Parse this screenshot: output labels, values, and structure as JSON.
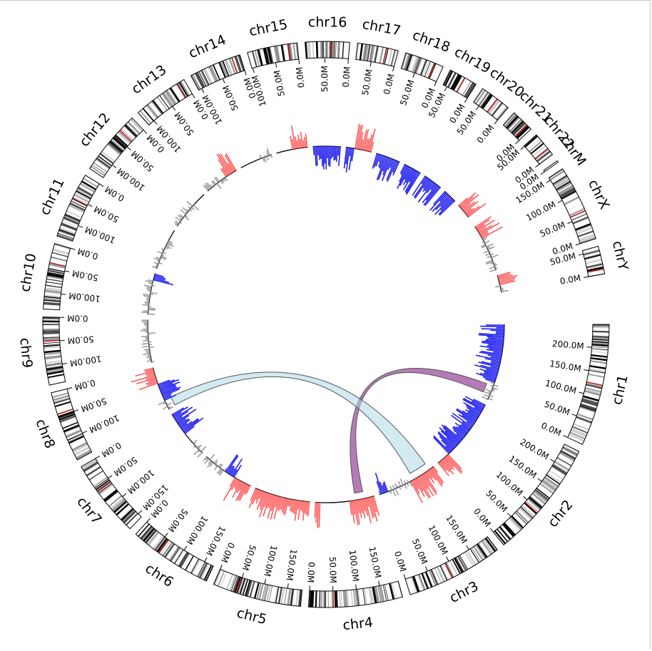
{
  "colors": {
    "gain": "#ff5a5a",
    "loss": "#2020f0",
    "neutral": "#9e9e9e",
    "centromere": "#b22222",
    "link_purple": "#9b4fa0",
    "link_blue": "#add8e6"
  },
  "chromosomes": [
    {
      "name": "chr1",
      "length": 249,
      "cent": 125,
      "ticks": [
        "0.0M",
        "50.0M",
        "100.0M",
        "150.0M",
        "200.0M"
      ]
    },
    {
      "name": "chr2",
      "length": 243,
      "cent": 93,
      "ticks": [
        "0.0M",
        "50.0M",
        "100.0M",
        "150.0M",
        "200.0M"
      ]
    },
    {
      "name": "chr3",
      "length": 198,
      "cent": 91,
      "ticks": [
        "0.0M",
        "50.0M",
        "100.0M",
        "150.0M"
      ]
    },
    {
      "name": "chr4",
      "length": 191,
      "cent": 50,
      "ticks": [
        "0.0M",
        "50.0M",
        "100.0M",
        "150.0M"
      ]
    },
    {
      "name": "chr5",
      "length": 181,
      "cent": 48,
      "ticks": [
        "0.0M",
        "50.0M",
        "100.0M",
        "150.0M"
      ]
    },
    {
      "name": "chr6",
      "length": 171,
      "cent": 60,
      "ticks": [
        "0.0M",
        "50.0M",
        "100.0M",
        "150.0M"
      ]
    },
    {
      "name": "chr7",
      "length": 159,
      "cent": 60,
      "ticks": [
        "0.0M",
        "50.0M",
        "100.0M",
        "150.0M"
      ]
    },
    {
      "name": "chr8",
      "length": 145,
      "cent": 45,
      "ticks": [
        "0.0M",
        "50.0M",
        "100.0M"
      ]
    },
    {
      "name": "chr9",
      "length": 138,
      "cent": 49,
      "ticks": [
        "0.0M",
        "50.0M",
        "100.0M"
      ]
    },
    {
      "name": "chr10",
      "length": 134,
      "cent": 40,
      "ticks": [
        "0.0M",
        "50.0M",
        "100.0M"
      ]
    },
    {
      "name": "chr11",
      "length": 135,
      "cent": 53,
      "ticks": [
        "0.0M",
        "50.0M",
        "100.0M"
      ]
    },
    {
      "name": "chr12",
      "length": 133,
      "cent": 35,
      "ticks": [
        "0.0M",
        "50.0M",
        "100.0M"
      ]
    },
    {
      "name": "chr13",
      "length": 114,
      "cent": 17,
      "ticks": [
        "0.0M",
        "50.0M",
        "100.0M"
      ]
    },
    {
      "name": "chr14",
      "length": 107,
      "cent": 17,
      "ticks": [
        "0.0M",
        "50.0M",
        "100.0M"
      ]
    },
    {
      "name": "chr15",
      "length": 102,
      "cent": 19,
      "ticks": [
        "0.0M",
        "50.0M",
        "100.0M"
      ]
    },
    {
      "name": "chr16",
      "length": 90,
      "cent": 36,
      "ticks": [
        "0.0M",
        "50.0M"
      ]
    },
    {
      "name": "chr17",
      "length": 83,
      "cent": 24,
      "ticks": [
        "0.0M",
        "50.0M"
      ]
    },
    {
      "name": "chr18",
      "length": 80,
      "cent": 17,
      "ticks": [
        "0.0M",
        "50.0M"
      ]
    },
    {
      "name": "chr19",
      "length": 59,
      "cent": 26,
      "ticks": [
        "0.0M",
        "50.0M"
      ]
    },
    {
      "name": "chr20",
      "length": 64,
      "cent": 28,
      "ticks": [
        "0.0M",
        "50.0M"
      ]
    },
    {
      "name": "chr21",
      "length": 47,
      "cent": 12,
      "ticks": [
        "0.0M"
      ]
    },
    {
      "name": "chr22",
      "length": 51,
      "cent": 15,
      "ticks": [
        "0.0M",
        "50.0M"
      ]
    },
    {
      "name": "chrM",
      "length": 0.5,
      "cent": null,
      "ticks": [
        "0.0M"
      ]
    },
    {
      "name": "chrX",
      "length": 156,
      "cent": 60,
      "ticks": [
        "0.0M",
        "50.0M",
        "100.0M",
        "150.0M"
      ]
    },
    {
      "name": "chrY",
      "length": 57,
      "cent": 10,
      "ticks": [
        "0.0M",
        "50.0M"
      ]
    }
  ],
  "links": [
    {
      "name": "link-chr1-chr4",
      "from": {
        "chr": "chr1",
        "start": 18,
        "end": 48
      },
      "to": {
        "chr": "chr4",
        "start": 130,
        "end": 158
      },
      "color": "link_purple"
    },
    {
      "name": "link-chr3-chr8",
      "from": {
        "chr": "chr3",
        "start": 120,
        "end": 180
      },
      "to": {
        "chr": "chr8",
        "start": 110,
        "end": 140
      },
      "color": "link_blue"
    }
  ]
}
